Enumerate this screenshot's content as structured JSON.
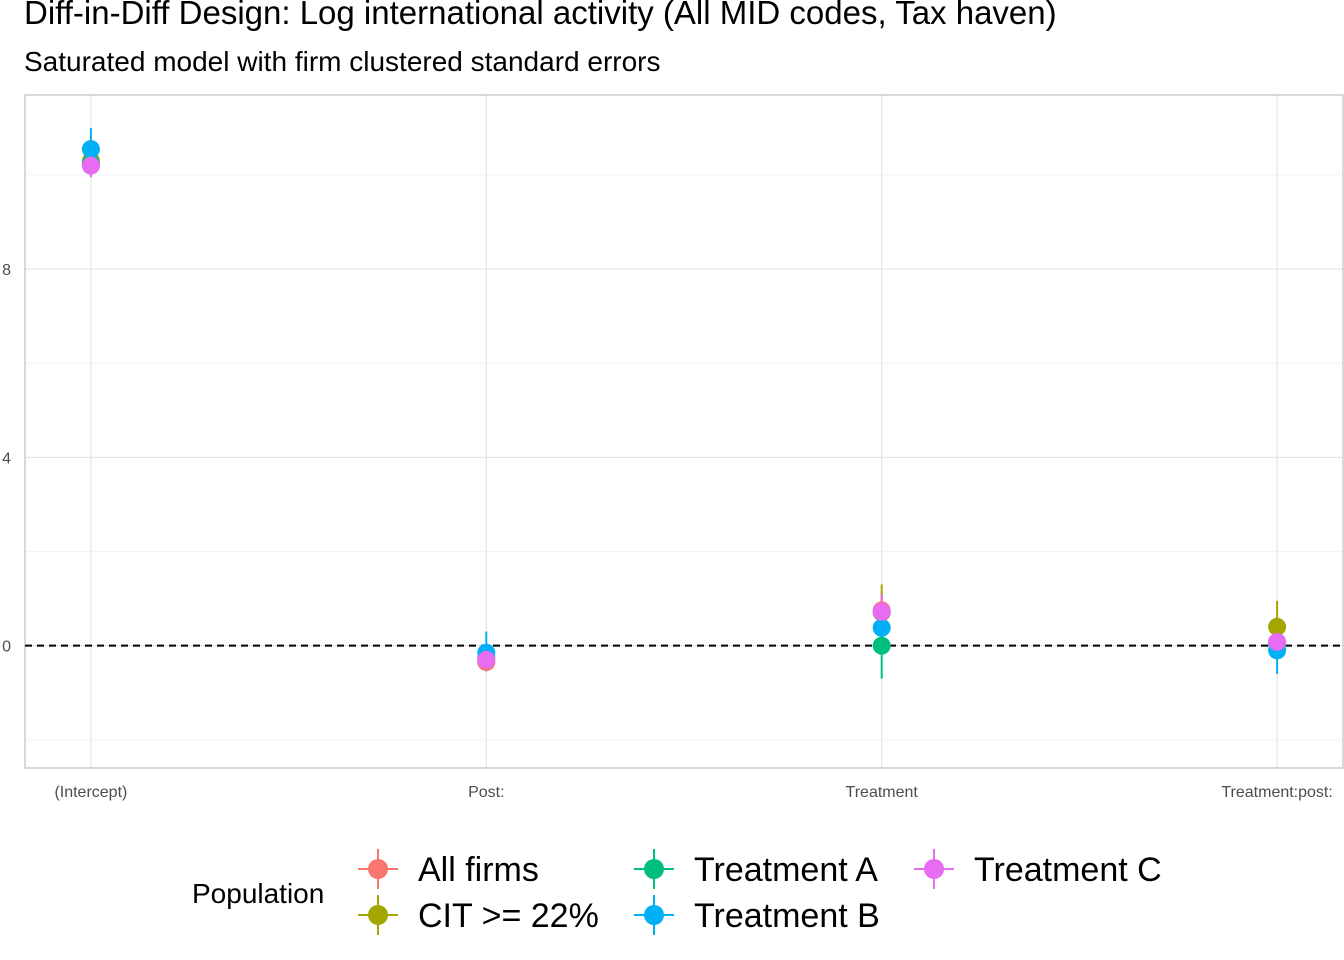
{
  "title": "Diff-in-Diff Design: Log international activity (All MID codes, Tax haven)",
  "subtitle": "Saturated model with firm clustered standard errors",
  "chart_data": {
    "type": "scatter",
    "title": "Diff-in-Diff Design: Log international activity (All MID codes, Tax haven)",
    "subtitle": "Saturated model with firm clustered standard errors",
    "xlabel": "",
    "ylabel": "",
    "categories": [
      "(Intercept)",
      "Post:",
      "Treatment",
      "Treatment:post:"
    ],
    "y_ticks": [
      0,
      4,
      8
    ],
    "y_tick_labels": [
      "0",
      "4",
      "8"
    ],
    "ylim": [
      -2.6,
      11.7
    ],
    "reference_line": {
      "y": 0,
      "style": "dashed"
    },
    "grid": true,
    "legend": {
      "title": "Population",
      "position": "bottom"
    },
    "series": [
      {
        "name": "All firms",
        "color": "#F8766D",
        "values": [
          10.2,
          -0.35,
          0.75,
          0.05
        ],
        "lower": [
          10.0,
          -0.5,
          0.35,
          -0.2
        ],
        "upper": [
          10.4,
          -0.2,
          1.15,
          0.3
        ]
      },
      {
        "name": "CIT >= 22%",
        "color": "#A3A500",
        "values": [
          10.3,
          -0.3,
          0.7,
          0.4
        ],
        "lower": [
          10.1,
          -0.45,
          0.2,
          -0.1
        ],
        "upper": [
          10.5,
          -0.15,
          1.3,
          0.95
        ]
      },
      {
        "name": "Treatment A",
        "color": "#00BF7D",
        "values": [
          10.25,
          -0.25,
          0.0,
          0.02
        ],
        "lower": [
          10.05,
          -0.4,
          -0.7,
          -0.2
        ],
        "upper": [
          10.45,
          -0.1,
          0.7,
          0.25
        ]
      },
      {
        "name": "Treatment B",
        "color": "#00B0F6",
        "values": [
          10.55,
          -0.15,
          0.38,
          -0.1
        ],
        "lower": [
          10.15,
          -0.55,
          0.0,
          -0.6
        ],
        "upper": [
          11.0,
          0.3,
          0.8,
          0.4
        ]
      },
      {
        "name": "Treatment C",
        "color": "#E76BF3",
        "values": [
          10.2,
          -0.3,
          0.72,
          0.08
        ],
        "lower": [
          9.95,
          -0.45,
          0.3,
          -0.25
        ],
        "upper": [
          10.45,
          -0.15,
          1.1,
          0.45
        ]
      }
    ]
  }
}
